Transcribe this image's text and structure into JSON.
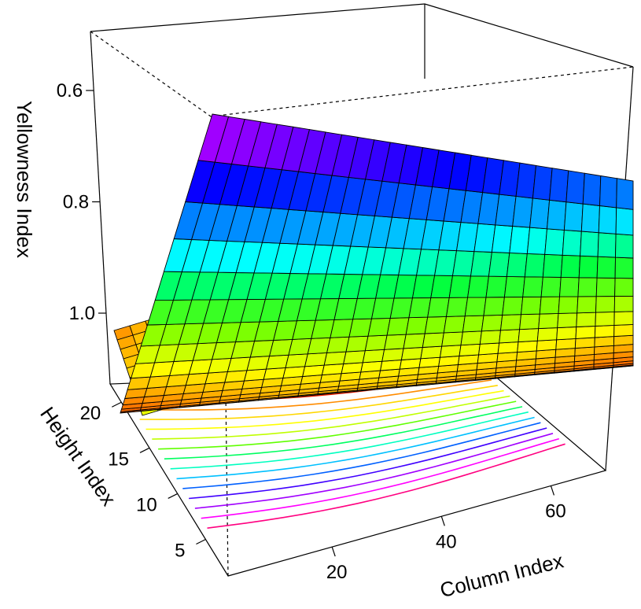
{
  "chart_data": {
    "type": "surface3d",
    "zlabel": "Yellowness Index",
    "ylabel": "Height Index",
    "xlabel": "Column Index",
    "z_ticks": [
      "0.6",
      "0.8",
      "1.0"
    ],
    "y_ticks": [
      "5",
      "10",
      "15",
      "20"
    ],
    "x_ticks": [
      "20",
      "40",
      "60"
    ],
    "x_range": [
      1,
      70
    ],
    "y_range": [
      1,
      22
    ],
    "z_range": [
      1.2,
      0.55
    ],
    "z_axis_reversed": true,
    "grid": false,
    "legend": "none",
    "surface_grid": {
      "x_cells": 26,
      "y_cells": 16
    },
    "contour_count": 14,
    "colormap": [
      "#ff0000",
      "#ff8000",
      "#ffff00",
      "#80ff00",
      "#00ff40",
      "#00ffff",
      "#0080ff",
      "#0000ff",
      "#8000ff",
      "#ff00ff",
      "#ff0060"
    ],
    "contour_colors": [
      "#ff2000",
      "#ff8c00",
      "#ffd700",
      "#ffff00",
      "#c0ff00",
      "#60ff00",
      "#00ff60",
      "#00ffc0",
      "#00c0ff",
      "#0060ff",
      "#4000ff",
      "#a000ff",
      "#ff00ff",
      "#ff0080"
    ]
  }
}
